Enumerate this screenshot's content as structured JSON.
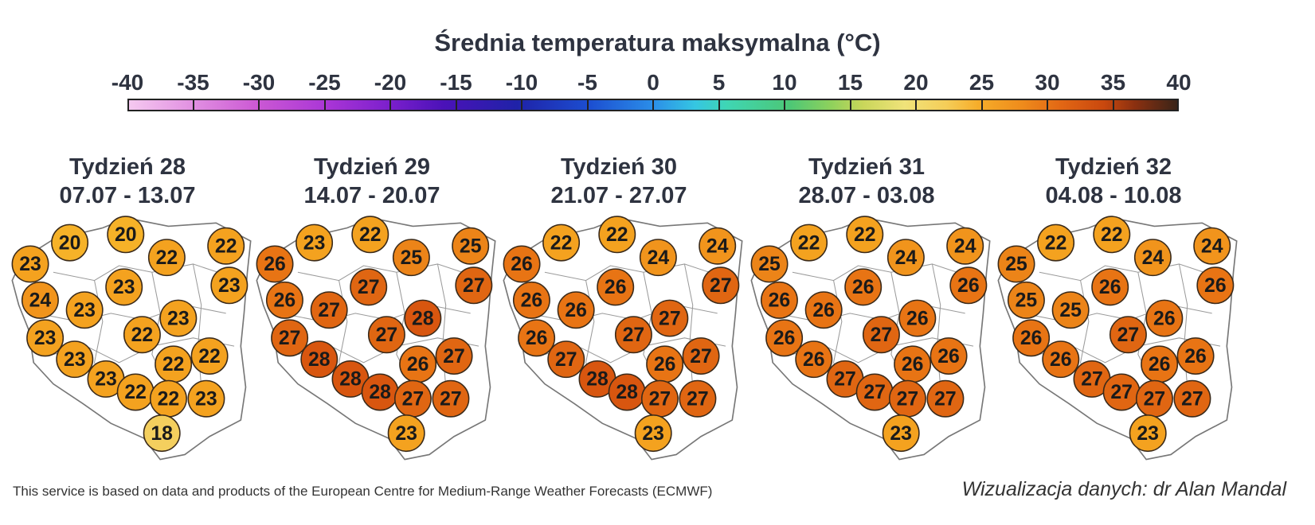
{
  "title": "Średnia temperatura maksymalna (°C)",
  "scale": {
    "ticks": [
      "-40",
      "-35",
      "-30",
      "-25",
      "-20",
      "-15",
      "-10",
      "-5",
      "0",
      "5",
      "10",
      "15",
      "20",
      "25",
      "30",
      "35",
      "40"
    ],
    "min": -40,
    "max": 40
  },
  "weeks": [
    {
      "name": "Tydzień 28",
      "dates": "07.07 - 13.07",
      "values": [
        23,
        20,
        20,
        22,
        22,
        23,
        23,
        24,
        23,
        23,
        23,
        22,
        23,
        22,
        22,
        23,
        22,
        22,
        23,
        18
      ]
    },
    {
      "name": "Tydzień 29",
      "dates": "14.07 - 20.07",
      "values": [
        26,
        23,
        22,
        25,
        25,
        27,
        27,
        26,
        27,
        28,
        27,
        27,
        28,
        27,
        26,
        28,
        28,
        27,
        27,
        23
      ]
    },
    {
      "name": "Tydzień 30",
      "dates": "21.07 - 27.07",
      "values": [
        26,
        22,
        22,
        24,
        24,
        26,
        27,
        26,
        26,
        27,
        26,
        27,
        27,
        27,
        26,
        28,
        28,
        27,
        27,
        23
      ]
    },
    {
      "name": "Tydzień 31",
      "dates": "28.07 - 03.08",
      "values": [
        25,
        22,
        22,
        24,
        24,
        26,
        26,
        26,
        26,
        26,
        26,
        27,
        26,
        26,
        26,
        27,
        27,
        27,
        27,
        23
      ]
    },
    {
      "name": "Tydzień 32",
      "dates": "04.08 - 10.08",
      "values": [
        25,
        22,
        22,
        24,
        24,
        26,
        26,
        25,
        25,
        26,
        26,
        27,
        26,
        26,
        26,
        27,
        27,
        27,
        27,
        23
      ]
    }
  ],
  "footer": {
    "source": "This service is based on data and products of the European Centre for Medium-Range Weather Forecasts (ECMWF)",
    "credit": "Wizualizacja danych: dr Alan Mandal"
  }
}
